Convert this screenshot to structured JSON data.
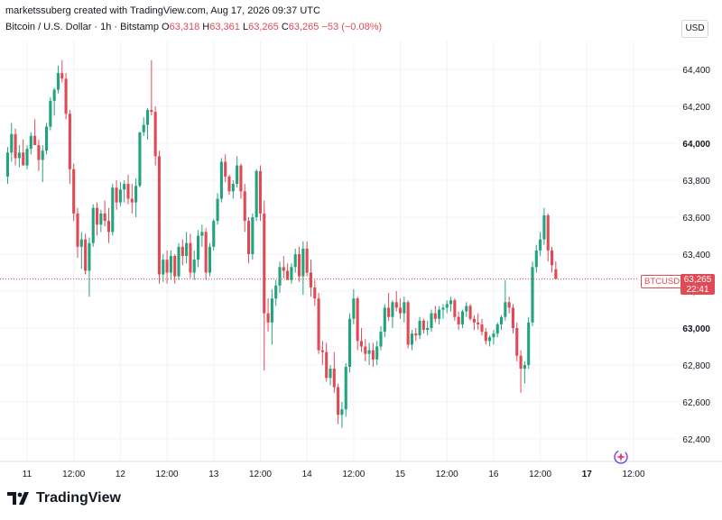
{
  "header": {
    "credit": "marketssuberg created with TradingView.com, Aug 17, 2026 09:37 UTC"
  },
  "legend": {
    "symbol": "Bitcoin / U.S. Dollar · 1h · Bitstamp",
    "o_label": "O",
    "o_value": "63,318",
    "h_label": "H",
    "h_value": "63,361",
    "l_label": "L",
    "l_value": "63,265",
    "c_label": "C",
    "c_value": "63,265",
    "change": "−53 (−0.08%)"
  },
  "currency_button": "USD",
  "price_tag": {
    "symbol": "BTCUSD",
    "price": "63,265",
    "countdown": "22:41"
  },
  "footer": {
    "brand": "TradingView"
  },
  "colors": {
    "up": "#22a37f",
    "down": "#e04a55",
    "grid": "#f0f3fa",
    "axis_text": "#131722"
  },
  "chart_data": {
    "type": "candlestick",
    "title": "Bitcoin / U.S. Dollar · 1h · Bitstamp",
    "ylim": [
      62300,
      64700
    ],
    "y_ticks": [
      64400,
      64200,
      64000,
      63800,
      63600,
      63400,
      63200,
      63000,
      62800,
      62600,
      62400
    ],
    "y_tick_labels": [
      "64,400",
      "64,200",
      "64,000",
      "63,800",
      "63,600",
      "63,400",
      "63,200",
      "63,000",
      "62,800",
      "62,600",
      "62,400"
    ],
    "x_tick_labels": [
      "11",
      "12:00",
      "12",
      "12:00",
      "13",
      "12:00",
      "14",
      "12:00",
      "15",
      "12:00",
      "16",
      "12:00",
      "17",
      "12:00"
    ],
    "x_tick_hours": [
      0,
      12,
      24,
      36,
      48,
      60,
      72,
      84,
      96,
      108,
      120,
      132,
      144,
      156
    ],
    "last_price": 63265,
    "grid": true,
    "candle_hours_start": -5,
    "ohlc": [
      [
        63820,
        63980,
        63780,
        63950
      ],
      [
        63950,
        64110,
        63900,
        64050
      ],
      [
        64050,
        64080,
        63880,
        63920
      ],
      [
        63920,
        63990,
        63870,
        63950
      ],
      [
        63950,
        64020,
        63900,
        63880
      ],
      [
        63880,
        63990,
        63860,
        63970
      ],
      [
        63970,
        64060,
        63940,
        64040
      ],
      [
        64040,
        64130,
        63990,
        63990
      ],
      [
        63990,
        64020,
        63850,
        63910
      ],
      [
        63910,
        63990,
        63790,
        63960
      ],
      [
        63960,
        64110,
        63940,
        64090
      ],
      [
        64090,
        64250,
        64070,
        64230
      ],
      [
        64230,
        64300,
        64150,
        64290
      ],
      [
        64290,
        64420,
        64270,
        64380
      ],
      [
        64380,
        64450,
        64330,
        64350
      ],
      [
        64350,
        64380,
        64130,
        64160
      ],
      [
        64160,
        64180,
        63780,
        63860
      ],
      [
        63860,
        63890,
        63580,
        63620
      ],
      [
        63620,
        63650,
        63380,
        63440
      ],
      [
        63440,
        63520,
        63320,
        63480
      ],
      [
        63480,
        63510,
        63290,
        63310
      ],
      [
        63310,
        63490,
        63170,
        63460
      ],
      [
        63460,
        63670,
        63440,
        63650
      ],
      [
        63650,
        63680,
        63500,
        63560
      ],
      [
        63560,
        63640,
        63520,
        63620
      ],
      [
        63620,
        63690,
        63550,
        63580
      ],
      [
        63580,
        63650,
        63460,
        63520
      ],
      [
        63520,
        63780,
        63500,
        63760
      ],
      [
        63760,
        63800,
        63640,
        63680
      ],
      [
        63680,
        63790,
        63660,
        63750
      ],
      [
        63750,
        63800,
        63680,
        63780
      ],
      [
        63780,
        63830,
        63670,
        63700
      ],
      [
        63700,
        63780,
        63620,
        63680
      ],
      [
        63680,
        63810,
        63600,
        63770
      ],
      [
        63770,
        64060,
        63760,
        64060
      ],
      [
        64060,
        64140,
        64040,
        64100
      ],
      [
        64100,
        64190,
        64020,
        64180
      ],
      [
        64180,
        64450,
        64150,
        64170
      ],
      [
        64170,
        64200,
        63880,
        63930
      ],
      [
        63930,
        63960,
        63240,
        63290
      ],
      [
        63290,
        63400,
        63250,
        63370
      ],
      [
        63370,
        63420,
        63240,
        63300
      ],
      [
        63300,
        63420,
        63260,
        63390
      ],
      [
        63390,
        63400,
        63240,
        63280
      ],
      [
        63280,
        63460,
        63260,
        63440
      ],
      [
        63440,
        63480,
        63340,
        63390
      ],
      [
        63390,
        63520,
        63350,
        63460
      ],
      [
        63460,
        63510,
        63270,
        63300
      ],
      [
        63300,
        63420,
        63260,
        63370
      ],
      [
        63370,
        63530,
        63330,
        63500
      ],
      [
        63500,
        63560,
        63440,
        63520
      ],
      [
        63520,
        63540,
        63260,
        63300
      ],
      [
        63300,
        63460,
        63280,
        63440
      ],
      [
        63440,
        63590,
        63420,
        63580
      ],
      [
        63580,
        63730,
        63560,
        63700
      ],
      [
        63700,
        63920,
        63680,
        63900
      ],
      [
        63900,
        63940,
        63790,
        63820
      ],
      [
        63820,
        63830,
        63720,
        63740
      ],
      [
        63740,
        63800,
        63700,
        63780
      ],
      [
        63780,
        63930,
        63760,
        63880
      ],
      [
        63880,
        63890,
        63700,
        63740
      ],
      [
        63740,
        63780,
        63520,
        63580
      ],
      [
        63580,
        63600,
        63350,
        63400
      ],
      [
        63400,
        63620,
        63370,
        63600
      ],
      [
        63600,
        63860,
        63580,
        63850
      ],
      [
        63850,
        63880,
        63580,
        63620
      ],
      [
        63620,
        63690,
        62770,
        63080
      ],
      [
        63080,
        63160,
        62980,
        63030
      ],
      [
        63030,
        63210,
        62910,
        63160
      ],
      [
        63160,
        63260,
        63120,
        63230
      ],
      [
        63230,
        63360,
        63190,
        63330
      ],
      [
        63330,
        63390,
        63270,
        63310
      ],
      [
        63310,
        63350,
        63280,
        63260
      ],
      [
        63260,
        63350,
        63240,
        63330
      ],
      [
        63330,
        63430,
        63300,
        63400
      ],
      [
        63400,
        63440,
        63250,
        63280
      ],
      [
        63280,
        63470,
        63180,
        63430
      ],
      [
        63430,
        63470,
        63280,
        63300
      ],
      [
        63300,
        63370,
        63170,
        63220
      ],
      [
        63220,
        63260,
        63120,
        63160
      ],
      [
        63160,
        63190,
        62860,
        62880
      ],
      [
        62880,
        62930,
        62800,
        62870
      ],
      [
        62870,
        62920,
        62710,
        62730
      ],
      [
        62730,
        62800,
        62690,
        62780
      ],
      [
        62780,
        62870,
        62650,
        62680
      ],
      [
        62680,
        62700,
        62480,
        62530
      ],
      [
        62530,
        62600,
        62460,
        62560
      ],
      [
        62560,
        62810,
        62520,
        62790
      ],
      [
        62790,
        63080,
        62760,
        63050
      ],
      [
        63050,
        63210,
        63020,
        63160
      ],
      [
        63160,
        63170,
        62880,
        62930
      ],
      [
        62930,
        63000,
        62870,
        62900
      ],
      [
        62900,
        62940,
        62820,
        62860
      ],
      [
        62860,
        62920,
        62800,
        62880
      ],
      [
        62880,
        62920,
        62790,
        62830
      ],
      [
        62830,
        62930,
        62800,
        62900
      ],
      [
        62900,
        63010,
        62880,
        62980
      ],
      [
        62980,
        63130,
        62950,
        63110
      ],
      [
        63110,
        63190,
        63040,
        63060
      ],
      [
        63060,
        63150,
        63000,
        63140
      ],
      [
        63140,
        63200,
        63090,
        63110
      ],
      [
        63110,
        63160,
        63050,
        63080
      ],
      [
        63080,
        63170,
        63030,
        63140
      ],
      [
        63140,
        63150,
        62890,
        62910
      ],
      [
        62910,
        62990,
        62880,
        62970
      ],
      [
        62970,
        63000,
        62930,
        62960
      ],
      [
        62960,
        63060,
        62940,
        63040
      ],
      [
        63040,
        63050,
        62970,
        62990
      ],
      [
        62990,
        63040,
        62960,
        63000
      ],
      [
        63000,
        63100,
        62980,
        63080
      ],
      [
        63080,
        63120,
        63030,
        63050
      ],
      [
        63050,
        63120,
        63020,
        63100
      ],
      [
        63100,
        63130,
        63050,
        63110
      ],
      [
        63110,
        63150,
        63080,
        63130
      ],
      [
        63130,
        63170,
        63090,
        63150
      ],
      [
        63150,
        63160,
        63040,
        63060
      ],
      [
        63060,
        63090,
        62990,
        63020
      ],
      [
        63020,
        63100,
        63000,
        63090
      ],
      [
        63090,
        63140,
        63060,
        63120
      ],
      [
        63120,
        63130,
        63040,
        63050
      ],
      [
        63050,
        63070,
        62990,
        63030
      ],
      [
        63030,
        63080,
        62990,
        63020
      ],
      [
        63020,
        63050,
        62960,
        62980
      ],
      [
        62980,
        63000,
        62910,
        62930
      ],
      [
        62930,
        62960,
        62900,
        62950
      ],
      [
        62950,
        62990,
        62910,
        62970
      ],
      [
        62970,
        63030,
        62950,
        63020
      ],
      [
        63020,
        63070,
        62990,
        63060
      ],
      [
        63060,
        63260,
        63040,
        63140
      ],
      [
        63140,
        63170,
        63080,
        63110
      ],
      [
        63110,
        63130,
        62970,
        63000
      ],
      [
        63000,
        63030,
        62820,
        62850
      ],
      [
        62850,
        62880,
        62650,
        62780
      ],
      [
        62780,
        62820,
        62700,
        62800
      ],
      [
        62800,
        63060,
        62780,
        63030
      ],
      [
        63030,
        63360,
        63010,
        63330
      ],
      [
        63330,
        63450,
        63300,
        63420
      ],
      [
        63420,
        63520,
        63390,
        63480
      ],
      [
        63480,
        63650,
        63450,
        63610
      ],
      [
        63610,
        63620,
        63360,
        63420
      ],
      [
        63420,
        63440,
        63300,
        63340
      ],
      [
        63318,
        63361,
        63265,
        63265
      ]
    ]
  }
}
